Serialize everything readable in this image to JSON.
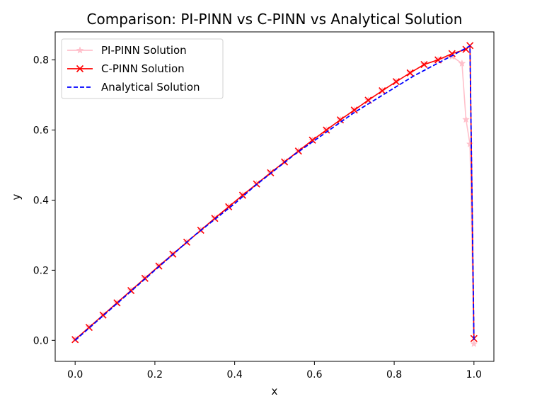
{
  "chart_data": {
    "type": "line",
    "title": "Comparison: PI-PINN vs C-PINN vs Analytical Solution",
    "xlabel": "x",
    "ylabel": "y",
    "xlim": [
      -0.05,
      1.05
    ],
    "ylim": [
      -0.06,
      0.88
    ],
    "x_ticks": [
      0.0,
      0.2,
      0.4,
      0.6,
      0.8,
      1.0
    ],
    "x_tick_labels": [
      "0.0",
      "0.2",
      "0.4",
      "0.6",
      "0.8",
      "1.0"
    ],
    "y_ticks": [
      0.0,
      0.2,
      0.4,
      0.6,
      0.8
    ],
    "y_tick_labels": [
      "0.0",
      "0.2",
      "0.4",
      "0.6",
      "0.8"
    ],
    "grid": false,
    "legend_position": "upper-left",
    "series": [
      {
        "name": "PI-PINN Solution",
        "color": "#ffc0cb",
        "marker": "star",
        "x": [
          0.0,
          0.035,
          0.07,
          0.105,
          0.14,
          0.175,
          0.21,
          0.245,
          0.28,
          0.315,
          0.35,
          0.385,
          0.42,
          0.455,
          0.49,
          0.525,
          0.56,
          0.595,
          0.63,
          0.665,
          0.7,
          0.735,
          0.77,
          0.805,
          0.84,
          0.875,
          0.91,
          0.945,
          0.97,
          0.98,
          0.99,
          1.0
        ],
        "y": [
          0.002,
          0.037,
          0.072,
          0.107,
          0.142,
          0.177,
          0.212,
          0.246,
          0.28,
          0.314,
          0.348,
          0.381,
          0.414,
          0.446,
          0.478,
          0.509,
          0.54,
          0.571,
          0.6,
          0.629,
          0.657,
          0.685,
          0.712,
          0.738,
          0.763,
          0.787,
          0.8,
          0.81,
          0.79,
          0.63,
          0.56,
          -0.01
        ]
      },
      {
        "name": "C-PINN Solution",
        "color": "#ff0000",
        "marker": "x",
        "x": [
          0.0,
          0.035,
          0.07,
          0.105,
          0.14,
          0.175,
          0.21,
          0.245,
          0.28,
          0.315,
          0.35,
          0.385,
          0.42,
          0.455,
          0.49,
          0.525,
          0.56,
          0.595,
          0.63,
          0.665,
          0.7,
          0.735,
          0.77,
          0.805,
          0.84,
          0.875,
          0.91,
          0.945,
          0.98,
          0.99,
          1.0
        ],
        "y": [
          0.002,
          0.037,
          0.072,
          0.107,
          0.142,
          0.177,
          0.212,
          0.246,
          0.28,
          0.314,
          0.348,
          0.381,
          0.414,
          0.446,
          0.478,
          0.509,
          0.54,
          0.571,
          0.6,
          0.629,
          0.657,
          0.685,
          0.712,
          0.738,
          0.763,
          0.787,
          0.8,
          0.818,
          0.83,
          0.841,
          0.005
        ]
      },
      {
        "name": "Analytical Solution",
        "color": "#0000ff",
        "marker": "none",
        "dash": "dashed",
        "x": [
          0.0,
          0.05,
          0.1,
          0.15,
          0.2,
          0.25,
          0.3,
          0.35,
          0.4,
          0.45,
          0.5,
          0.55,
          0.6,
          0.65,
          0.7,
          0.75,
          0.8,
          0.85,
          0.9,
          0.95,
          0.99,
          1.0
        ],
        "y": [
          0.0,
          0.05,
          0.1,
          0.15,
          0.2,
          0.25,
          0.3,
          0.345,
          0.39,
          0.44,
          0.485,
          0.53,
          0.57,
          0.61,
          0.65,
          0.685,
          0.72,
          0.755,
          0.785,
          0.815,
          0.84,
          0.0
        ]
      }
    ]
  }
}
